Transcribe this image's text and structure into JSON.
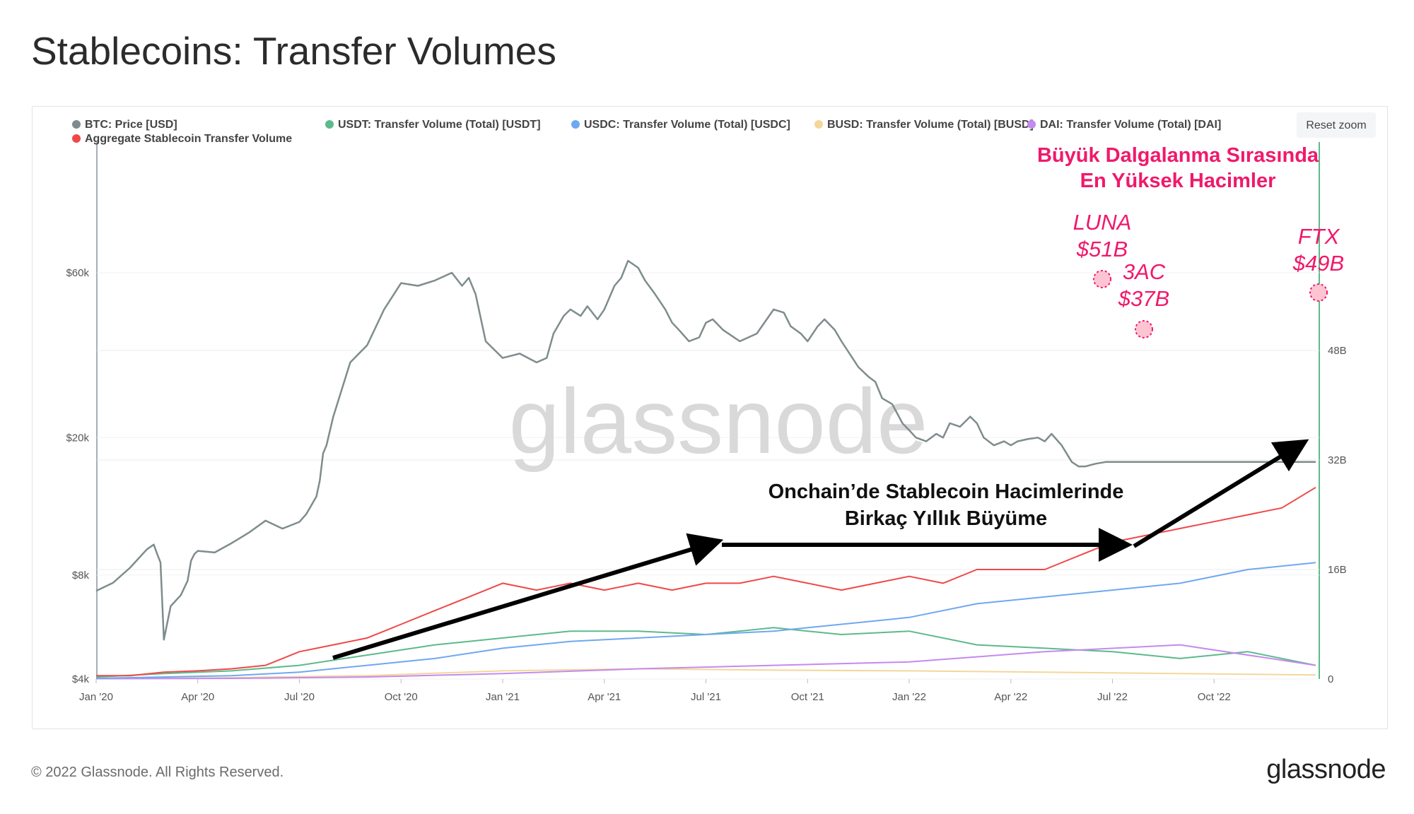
{
  "title": "Stablecoins: Transfer Volumes",
  "footer": {
    "copyright": "© 2022 Glassnode. All Rights Reserved.",
    "logo": "glassnode"
  },
  "watermark": "glassnode",
  "reset_zoom_label": "Reset zoom",
  "colors": {
    "btc": "#7f8c8d",
    "usdt": "#5cba8b",
    "usdc": "#6fa8f0",
    "busd": "#f3d79a",
    "dai": "#c48af0",
    "aggregate": "#f04848",
    "annotation_pink": "#f0196a",
    "arrow": "#000000"
  },
  "chart_data": {
    "type": "line",
    "x_ticks": [
      "Jan '20",
      "Apr '20",
      "Jul '20",
      "Oct '20",
      "Jan '21",
      "Apr '21",
      "Jul '21",
      "Oct '21",
      "Jan '22",
      "Apr '22",
      "Jul '22",
      "Oct '22"
    ],
    "left_axis": {
      "scale": "log",
      "ticks": [
        "$4k",
        "$8k",
        "$20k",
        "$60k"
      ],
      "tick_values": [
        4000,
        8000,
        20000,
        60000
      ]
    },
    "right_axis": {
      "ticks": [
        "0",
        "16B",
        "32B",
        "48B"
      ],
      "tick_values": [
        0,
        16,
        32,
        48
      ]
    },
    "legend": [
      {
        "name": "BTC: Price [USD]",
        "color_key": "btc"
      },
      {
        "name": "USDT: Transfer Volume (Total) [USDT]",
        "color_key": "usdt"
      },
      {
        "name": "USDC: Transfer Volume (Total) [USDC]",
        "color_key": "usdc"
      },
      {
        "name": "BUSD: Transfer Volume (Total) [BUSD]",
        "color_key": "busd"
      },
      {
        "name": "DAI: Transfer Volume (Total) [DAI]",
        "color_key": "dai"
      },
      {
        "name": "Aggregate Stablecoin Transfer Volume",
        "color_key": "aggregate"
      }
    ],
    "series": [
      {
        "name": "BTC: Price [USD]",
        "axis": "left",
        "color_key": "btc",
        "x": [
          0,
          5,
          10,
          15,
          17,
          18,
          19,
          20,
          22,
          25,
          27,
          28,
          29,
          30,
          35,
          40,
          45,
          50,
          55,
          60,
          62,
          65,
          66,
          67,
          68,
          70,
          75,
          80,
          85,
          90,
          95,
          100,
          105,
          108,
          110,
          112,
          115,
          120,
          125,
          130,
          133,
          135,
          138,
          140,
          143,
          145,
          148,
          150,
          153,
          155,
          157,
          160,
          162,
          165,
          168,
          170,
          172,
          175,
          178,
          180,
          182,
          185,
          190,
          195,
          200,
          203,
          205,
          208,
          210,
          213,
          215,
          218,
          220,
          225,
          228,
          230,
          232,
          235,
          238,
          240,
          242,
          245,
          248,
          250,
          252,
          255,
          258,
          260,
          262,
          265,
          268,
          270,
          272,
          275,
          278,
          280,
          282,
          285,
          288,
          290,
          292,
          295,
          298,
          300,
          305,
          310,
          315,
          320,
          325,
          330,
          333,
          335,
          340,
          345,
          350,
          355,
          360
        ],
        "y": [
          7200,
          7600,
          8400,
          9500,
          9800,
          9200,
          8700,
          5200,
          6500,
          7000,
          7700,
          8800,
          9200,
          9400,
          9300,
          9900,
          10600,
          11500,
          10900,
          11400,
          12000,
          13500,
          15000,
          18000,
          19000,
          23000,
          33000,
          37000,
          47000,
          56000,
          55000,
          57000,
          60000,
          55000,
          58000,
          52000,
          38000,
          34000,
          35000,
          33000,
          34000,
          40000,
          45000,
          47000,
          45000,
          48000,
          44000,
          47000,
          55000,
          58000,
          65000,
          62000,
          57000,
          52000,
          47000,
          43000,
          41000,
          38000,
          39000,
          43000,
          44000,
          41000,
          38000,
          40000,
          47000,
          46000,
          42000,
          40000,
          38000,
          42000,
          44000,
          41000,
          38000,
          32000,
          30000,
          29000,
          26000,
          25000,
          22000,
          21000,
          20000,
          19500,
          20500,
          20000,
          22000,
          21500,
          23000,
          22000,
          20000,
          19000,
          19500,
          19000,
          19500,
          19800,
          20000,
          19500,
          20500,
          19000,
          17000,
          16500,
          16500,
          16800,
          17000,
          17000,
          17000,
          17000,
          17000,
          17000,
          17000,
          17000,
          17000,
          17000,
          17000,
          17000,
          17000,
          17000,
          17000
        ]
      },
      {
        "name": "USDT: Transfer Volume (Total) [USDT]",
        "axis": "right",
        "color_key": "usdt",
        "x": [
          0,
          20,
          40,
          60,
          80,
          100,
          120,
          140,
          160,
          180,
          200,
          220,
          240,
          260,
          280,
          300,
          320,
          340,
          360
        ],
        "y": [
          0.3,
          0.8,
          1.2,
          2,
          3.5,
          5,
          6,
          7,
          7,
          6.5,
          7.5,
          6.5,
          7,
          5,
          4.5,
          4,
          3,
          4,
          2
        ]
      },
      {
        "name": "USDC: Transfer Volume (Total) [USDC]",
        "axis": "right",
        "color_key": "usdc",
        "x": [
          0,
          20,
          40,
          60,
          80,
          100,
          120,
          140,
          160,
          180,
          200,
          220,
          240,
          260,
          280,
          300,
          320,
          340,
          360
        ],
        "y": [
          0.1,
          0.3,
          0.5,
          1,
          2,
          3,
          4.5,
          5.5,
          6,
          6.5,
          7,
          8,
          9,
          11,
          12,
          13,
          14,
          16,
          17
        ]
      },
      {
        "name": "BUSD: Transfer Volume (Total) [BUSD]",
        "axis": "right",
        "color_key": "busd",
        "x": [
          0,
          40,
          80,
          120,
          160,
          200,
          240,
          280,
          320,
          360
        ],
        "y": [
          0.05,
          0.2,
          0.5,
          1.2,
          1.5,
          1.3,
          1.2,
          1,
          0.8,
          0.6
        ]
      },
      {
        "name": "DAI: Transfer Volume (Total) [DAI]",
        "axis": "right",
        "color_key": "dai",
        "x": [
          0,
          40,
          80,
          120,
          160,
          200,
          240,
          280,
          320,
          360
        ],
        "y": [
          0.05,
          0.1,
          0.3,
          0.8,
          1.5,
          2,
          2.5,
          4,
          5,
          2
        ]
      },
      {
        "name": "Aggregate Stablecoin Transfer Volume",
        "axis": "right",
        "color_key": "aggregate",
        "x": [
          0,
          10,
          20,
          30,
          40,
          50,
          60,
          70,
          80,
          90,
          100,
          110,
          120,
          130,
          140,
          150,
          160,
          170,
          180,
          190,
          200,
          210,
          220,
          230,
          240,
          250,
          260,
          270,
          280,
          290,
          300,
          310,
          320,
          330,
          340,
          350,
          360
        ],
        "y": [
          0.5,
          0.5,
          1,
          1.2,
          1.5,
          2,
          4,
          5,
          6,
          8,
          10,
          12,
          14,
          13,
          14,
          13,
          14,
          13,
          14,
          14,
          15,
          14,
          13,
          14,
          15,
          14,
          16,
          16,
          16,
          18,
          20,
          21,
          22,
          23,
          24,
          25,
          28
        ]
      }
    ]
  },
  "annotations": {
    "headline": [
      "Büyük Dalgalanma Sırasında",
      "En Yüksek Hacimler"
    ],
    "luna": [
      "LUNA",
      "$51B"
    ],
    "ac3": [
      "3AC",
      "$37B"
    ],
    "ftx": [
      "FTX",
      "$49B"
    ],
    "growth": [
      "Onchain’de Stablecoin Hacimlerinde",
      "Birkaç Yıllık Büyüme"
    ]
  }
}
